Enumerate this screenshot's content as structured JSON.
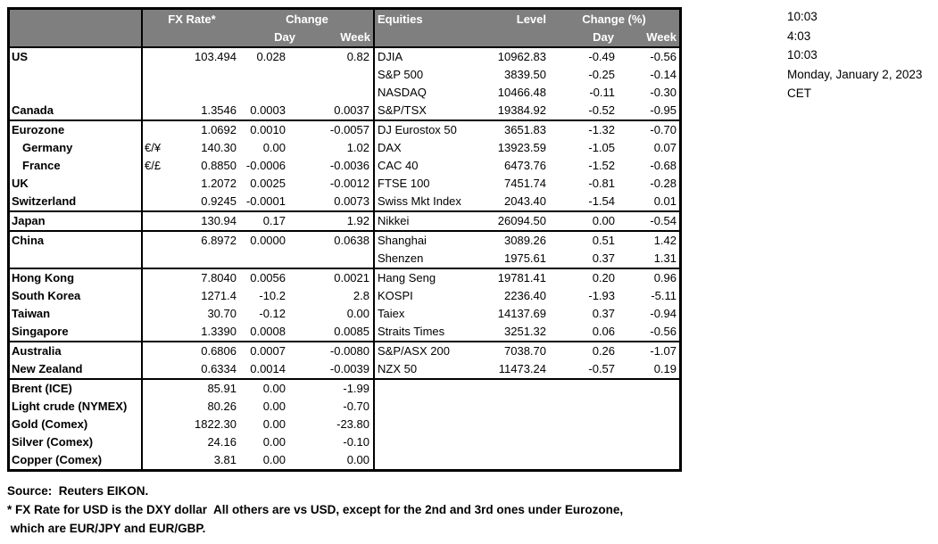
{
  "colors": {
    "header_bg": "#7f7f7f",
    "header_text": "#ffffff",
    "border": "#000000"
  },
  "header": {
    "fx_rate": "FX Rate*",
    "change": "Change",
    "day": "Day",
    "week": "Week",
    "equities": "Equities",
    "level": "Level",
    "change_pct": "Change (%)",
    "eq_day": "Day",
    "eq_week": "Week"
  },
  "timestamps": [
    "10:03",
    "4:03",
    "10:03",
    "Monday, January 2, 2023",
    "CET"
  ],
  "footer": {
    "source": "Source:  Reuters EIKON.",
    "note1": "* FX Rate for USD is the DXY dollar  All others are vs USD, except for the 2nd and 3rd ones under Eurozone,",
    "note2": " which are EUR/JPY and EUR/GBP."
  },
  "groups": [
    {
      "rows": [
        {
          "label": "US",
          "pair": "",
          "rate": "103.494",
          "day": "0.028",
          "week": "0.82",
          "eq": "DJIA",
          "level": "10962.83",
          "eqday": "-0.49",
          "eqweek": "-0.56"
        },
        {
          "label": "",
          "pair": "",
          "rate": "",
          "day": "",
          "week": "",
          "eq": "S&P 500",
          "level": "3839.50",
          "eqday": "-0.25",
          "eqweek": "-0.14"
        },
        {
          "label": "",
          "pair": "",
          "rate": "",
          "day": "",
          "week": "",
          "eq": "NASDAQ",
          "level": "10466.48",
          "eqday": "-0.11",
          "eqweek": "-0.30"
        },
        {
          "label": "Canada",
          "pair": "",
          "rate": "1.3546",
          "day": "0.0003",
          "week": "0.0037",
          "eq": "S&P/TSX",
          "level": "19384.92",
          "eqday": "-0.52",
          "eqweek": "-0.95"
        }
      ]
    },
    {
      "rows": [
        {
          "label": "Eurozone",
          "pair": "",
          "rate": "1.0692",
          "day": "0.0010",
          "week": "-0.0057",
          "eq": "DJ Eurostox 50",
          "level": "3651.83",
          "eqday": "-1.32",
          "eqweek": "-0.70"
        },
        {
          "label": "Germany",
          "cls": "indent",
          "pair": "€/¥",
          "rate": "140.30",
          "day": "0.00",
          "week": "1.02",
          "eq": "DAX",
          "level": "13923.59",
          "eqday": "-1.05",
          "eqweek": "0.07"
        },
        {
          "label": "France",
          "cls": "indent",
          "pair": "€/£",
          "rate": "0.8850",
          "day": "-0.0006",
          "week": "-0.0036",
          "eq": "CAC 40",
          "level": "6473.76",
          "eqday": "-1.52",
          "eqweek": "-0.68"
        },
        {
          "label": "UK",
          "pair": "",
          "rate": "1.2072",
          "day": "0.0025",
          "week": "-0.0012",
          "eq": "FTSE 100",
          "level": "7451.74",
          "eqday": "-0.81",
          "eqweek": "-0.28"
        },
        {
          "label": "Switzerland",
          "pair": "",
          "rate": "0.9245",
          "day": "-0.0001",
          "week": "0.0073",
          "eq": "Swiss Mkt Index",
          "level": "2043.40",
          "eqday": "-1.54",
          "eqweek": "0.01"
        }
      ]
    },
    {
      "rows": [
        {
          "label": "Japan",
          "pair": "",
          "rate": "130.94",
          "day": "0.17",
          "week": "1.92",
          "eq": "Nikkei",
          "level": "26094.50",
          "eqday": "0.00",
          "eqweek": "-0.54"
        }
      ]
    },
    {
      "rows": [
        {
          "label": "China",
          "pair": "",
          "rate": "6.8972",
          "day": "0.0000",
          "week": "0.0638",
          "eq": "Shanghai",
          "level": "3089.26",
          "eqday": "0.51",
          "eqweek": "1.42"
        },
        {
          "label": "",
          "pair": "",
          "rate": "",
          "day": "",
          "week": "",
          "eq": "Shenzen",
          "level": "1975.61",
          "eqday": "0.37",
          "eqweek": "1.31"
        }
      ]
    },
    {
      "rows": [
        {
          "label": "Hong Kong",
          "pair": "",
          "rate": "7.8040",
          "day": "0.0056",
          "week": "0.0021",
          "eq": "Hang Seng",
          "level": "19781.41",
          "eqday": "0.20",
          "eqweek": "0.96"
        },
        {
          "label": "South Korea",
          "pair": "",
          "rate": "1271.4",
          "day": "-10.2",
          "week": "2.8",
          "eq": "KOSPI",
          "level": "2236.40",
          "eqday": "-1.93",
          "eqweek": "-5.11"
        },
        {
          "label": "Taiwan",
          "pair": "",
          "rate": "30.70",
          "day": "-0.12",
          "week": "0.00",
          "eq": "Taiex",
          "level": "14137.69",
          "eqday": "0.37",
          "eqweek": "-0.94"
        },
        {
          "label": "Singapore",
          "pair": "",
          "rate": "1.3390",
          "day": "0.0008",
          "week": "0.0085",
          "eq": "Straits Times",
          "level": "3251.32",
          "eqday": "0.06",
          "eqweek": "-0.56"
        }
      ]
    },
    {
      "rows": [
        {
          "label": "Australia",
          "pair": "",
          "rate": "0.6806",
          "day": "0.0007",
          "week": "-0.0080",
          "eq": "S&P/ASX  200",
          "level": "7038.70",
          "eqday": "0.26",
          "eqweek": "-1.07"
        },
        {
          "label": "New Zealand",
          "pair": "",
          "rate": "0.6334",
          "day": "0.0014",
          "week": "-0.0039",
          "eq": "NZX 50",
          "level": "11473.24",
          "eqday": "-0.57",
          "eqweek": "0.19"
        }
      ]
    },
    {
      "rows": [
        {
          "label": "Brent (ICE)",
          "pair": "",
          "rate": "85.91",
          "day": "0.00",
          "week": "-1.99",
          "eq": "",
          "level": "",
          "eqday": "",
          "eqweek": ""
        },
        {
          "label": "Light crude (NYMEX)",
          "pair": "",
          "rate": "80.26",
          "day": "0.00",
          "week": "-0.70",
          "eq": "",
          "level": "",
          "eqday": "",
          "eqweek": ""
        },
        {
          "label": "Gold (Comex)",
          "pair": "",
          "rate": "1822.30",
          "day": "0.00",
          "week": "-23.80",
          "eq": "",
          "level": "",
          "eqday": "",
          "eqweek": ""
        },
        {
          "label": "Silver (Comex)",
          "pair": "",
          "rate": "24.16",
          "day": "0.00",
          "week": "-0.10",
          "eq": "",
          "level": "",
          "eqday": "",
          "eqweek": ""
        },
        {
          "label": "Copper (Comex)",
          "pair": "",
          "rate": "3.81",
          "day": "0.00",
          "week": "0.00",
          "eq": "",
          "level": "",
          "eqday": "",
          "eqweek": ""
        }
      ]
    }
  ]
}
